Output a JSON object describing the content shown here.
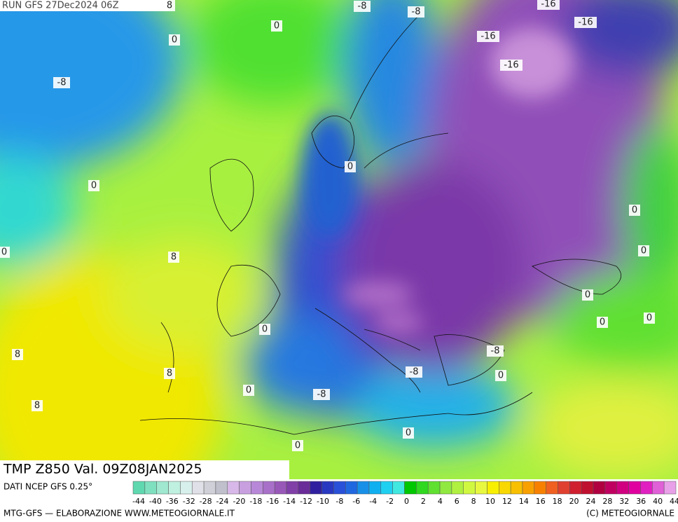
{
  "header": {
    "run": "RUN GFS 27Dec2024 06Z"
  },
  "title": "TMP Z850 Val. 09Z08JAN2025",
  "source": "DATI NCEP GFS 0.25°",
  "footer_left": "MTG-GFS — ELABORAZIONE WWW.METEOGIORNALE.IT",
  "footer_right": "(C) METEOGIORNALE",
  "contour_labels": [
    "8",
    "-8",
    "-8",
    "-16",
    "-16",
    "-16",
    "-16",
    "0",
    "0",
    "-8",
    "0",
    "0",
    "0",
    "0",
    "0",
    "8",
    "0",
    "0",
    "0",
    "0",
    "8",
    "-8",
    "-8",
    "0",
    "8",
    "0",
    "-8",
    "8",
    "0",
    "0"
  ],
  "colorbar": {
    "labels": [
      "-44",
      "-40",
      "-36",
      "-32",
      "-28",
      "-24",
      "-20",
      "-18",
      "-16",
      "-14",
      "-12",
      "-10",
      "-8",
      "-6",
      "-4",
      "-2",
      "0",
      "2",
      "4",
      "6",
      "8",
      "10",
      "12",
      "14",
      "16",
      "18",
      "20",
      "24",
      "28",
      "32",
      "36",
      "40",
      "44"
    ],
    "colors": [
      "#5fd8b0",
      "#7fe0c0",
      "#a0e8d0",
      "#c0f0e0",
      "#d8f0ec",
      "#e0e0e8",
      "#d0d0d8",
      "#c0c0cc",
      "#d8b8e8",
      "#c8a0e0",
      "#b888d8",
      "#a870c8",
      "#9858b8",
      "#8040a8",
      "#6a2c98",
      "#3020a0",
      "#2838c0",
      "#2850d8",
      "#2068e0",
      "#1890e8",
      "#10b0f0",
      "#20d0f0",
      "#40e8e0",
      "#00c800",
      "#30d820",
      "#60e030",
      "#90e840",
      "#b0f040",
      "#d0f840",
      "#e8f840",
      "#f8f000",
      "#f8d800",
      "#f8c000",
      "#f8a000",
      "#f88000",
      "#f06020",
      "#e04030",
      "#d02030",
      "#c01030",
      "#b00040",
      "#c00060",
      "#d00080",
      "#e000a0",
      "#e020c0",
      "#e060d8",
      "#e8a0e8"
    ]
  }
}
